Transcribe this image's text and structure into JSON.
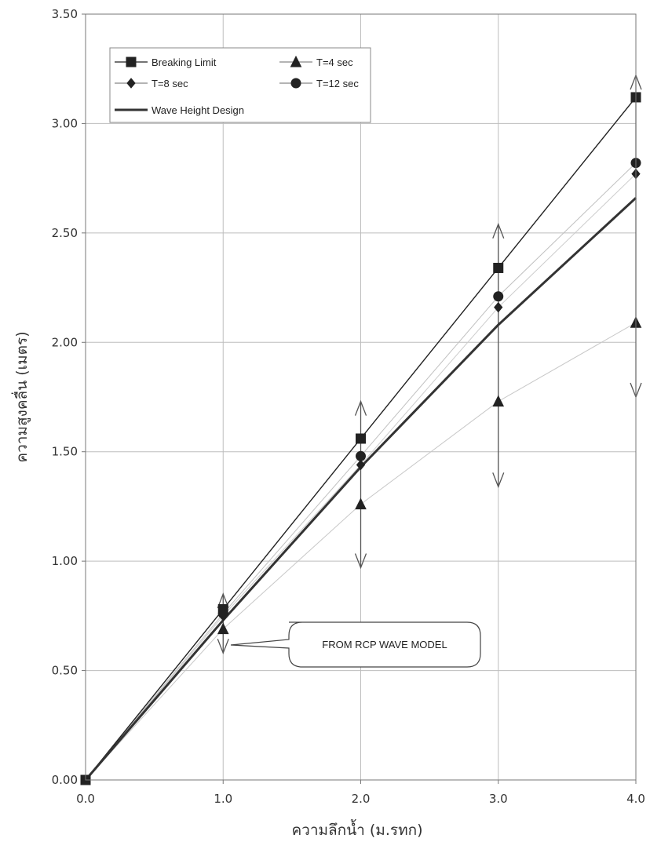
{
  "chart_data": {
    "type": "line",
    "xlabel": "ความลึกน้ำ (ม.รทก)",
    "ylabel": "ความสูงคลื่น (เมตร)",
    "xlim": [
      0,
      4
    ],
    "ylim": [
      0,
      3.5
    ],
    "x_ticks": [
      "0.0",
      "1.0",
      "2.0",
      "3.0",
      "4.0"
    ],
    "y_ticks": [
      "0.00",
      "0.50",
      "1.00",
      "1.50",
      "2.00",
      "2.50",
      "3.00",
      "3.50"
    ],
    "grid": true,
    "legend_position": "top-left",
    "x": [
      0,
      1,
      2,
      3,
      4
    ],
    "series": [
      {
        "name": "Breaking Limit",
        "marker": "square",
        "values": [
          0,
          0.78,
          1.56,
          2.34,
          3.12
        ],
        "color": "#222222",
        "width": 1.4
      },
      {
        "name": "T=4 sec",
        "marker": "triangle",
        "values": [
          0,
          0.69,
          1.26,
          1.73,
          2.09
        ],
        "color": "#c8c8c8",
        "width": 1
      },
      {
        "name": "T=8 sec",
        "marker": "diamond",
        "values": [
          0,
          0.75,
          1.44,
          2.16,
          2.77
        ],
        "color": "#cccccc",
        "width": 1
      },
      {
        "name": "T=12 sec",
        "marker": "circle",
        "values": [
          0,
          0.76,
          1.48,
          2.21,
          2.82
        ],
        "color": "#c0c0c0",
        "width": 1
      },
      {
        "name": "Wave Height Design",
        "marker": "none",
        "values": [
          0,
          0.73,
          1.43,
          2.08,
          2.66
        ],
        "color": "#333333",
        "width": 3
      }
    ],
    "ranges": [
      {
        "x": 1,
        "low": 0.58,
        "high": 0.85
      },
      {
        "x": 2,
        "low": 0.97,
        "high": 1.73
      },
      {
        "x": 3,
        "low": 1.34,
        "high": 2.54
      },
      {
        "x": 4,
        "low": 1.75,
        "high": 3.22
      }
    ],
    "annotations": [
      {
        "text": "FROM RCP WAVE MODEL",
        "points_to_x": 1,
        "points_to_y": 0.61
      }
    ]
  }
}
